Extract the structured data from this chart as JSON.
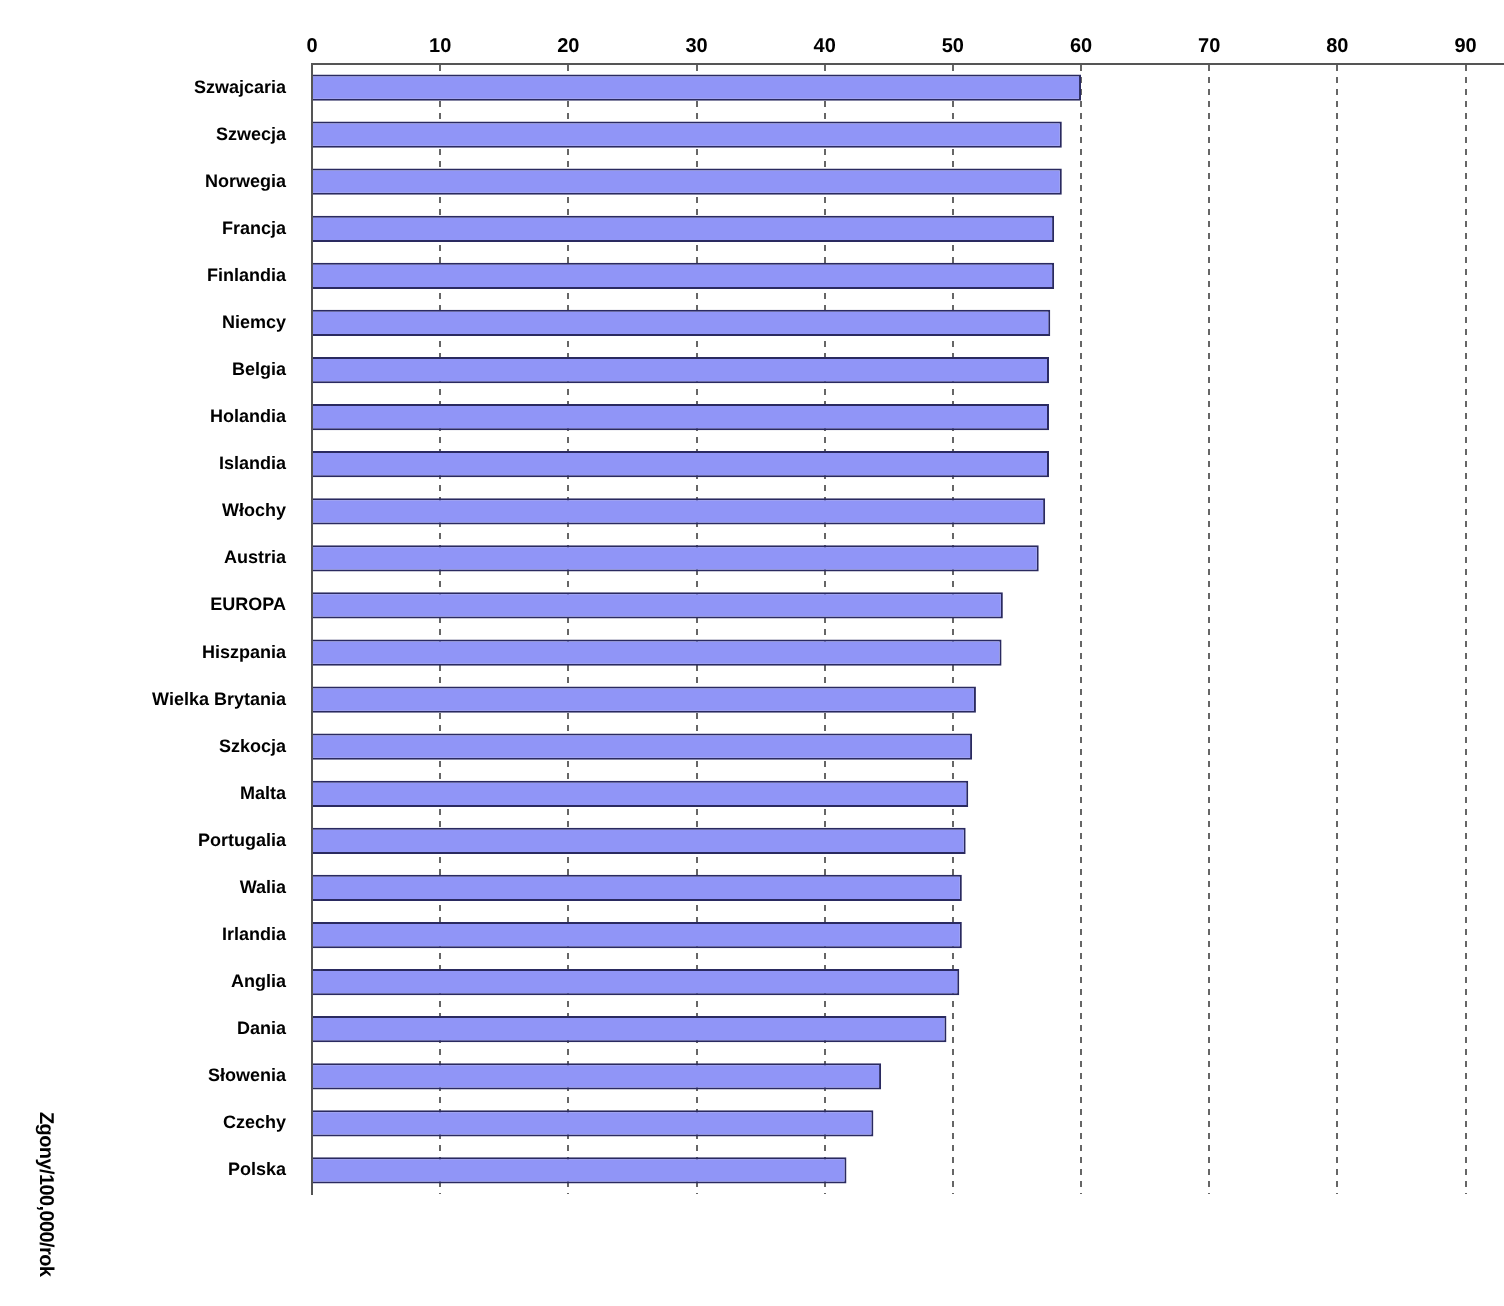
{
  "chart_data": {
    "type": "bar",
    "orientation": "horizontal",
    "annotations": [
      "Zgony/100,000/rok"
    ],
    "categories": [
      "Szwajcaria",
      "Szwecja",
      "Norwegia",
      "Francja",
      "Finlandia",
      "Niemcy",
      "Belgia",
      "Holandia",
      "Islandia",
      "Włochy",
      "Austria",
      "EUROPA",
      "Hiszpania",
      "Wielka Brytania",
      "Szkocja",
      "Malta",
      "Portugalia",
      "Walia",
      "Irlandia",
      "Anglia",
      "Dania",
      "Słowenia",
      "Czechy",
      "Polska"
    ],
    "values": [
      60,
      58.5,
      58.5,
      57.9,
      57.9,
      57.6,
      57.5,
      57.5,
      57.5,
      57.2,
      56.7,
      53.9,
      53.8,
      51.8,
      51.5,
      51.2,
      51.0,
      50.7,
      50.7,
      50.5,
      49.5,
      44.4,
      43.8,
      41.7
    ],
    "color": "#9095f7",
    "xlim": [
      0,
      93
    ],
    "xticks": [
      0,
      10,
      20,
      30,
      40,
      50,
      60,
      70,
      80,
      90
    ],
    "grid": "x",
    "legend": false
  }
}
